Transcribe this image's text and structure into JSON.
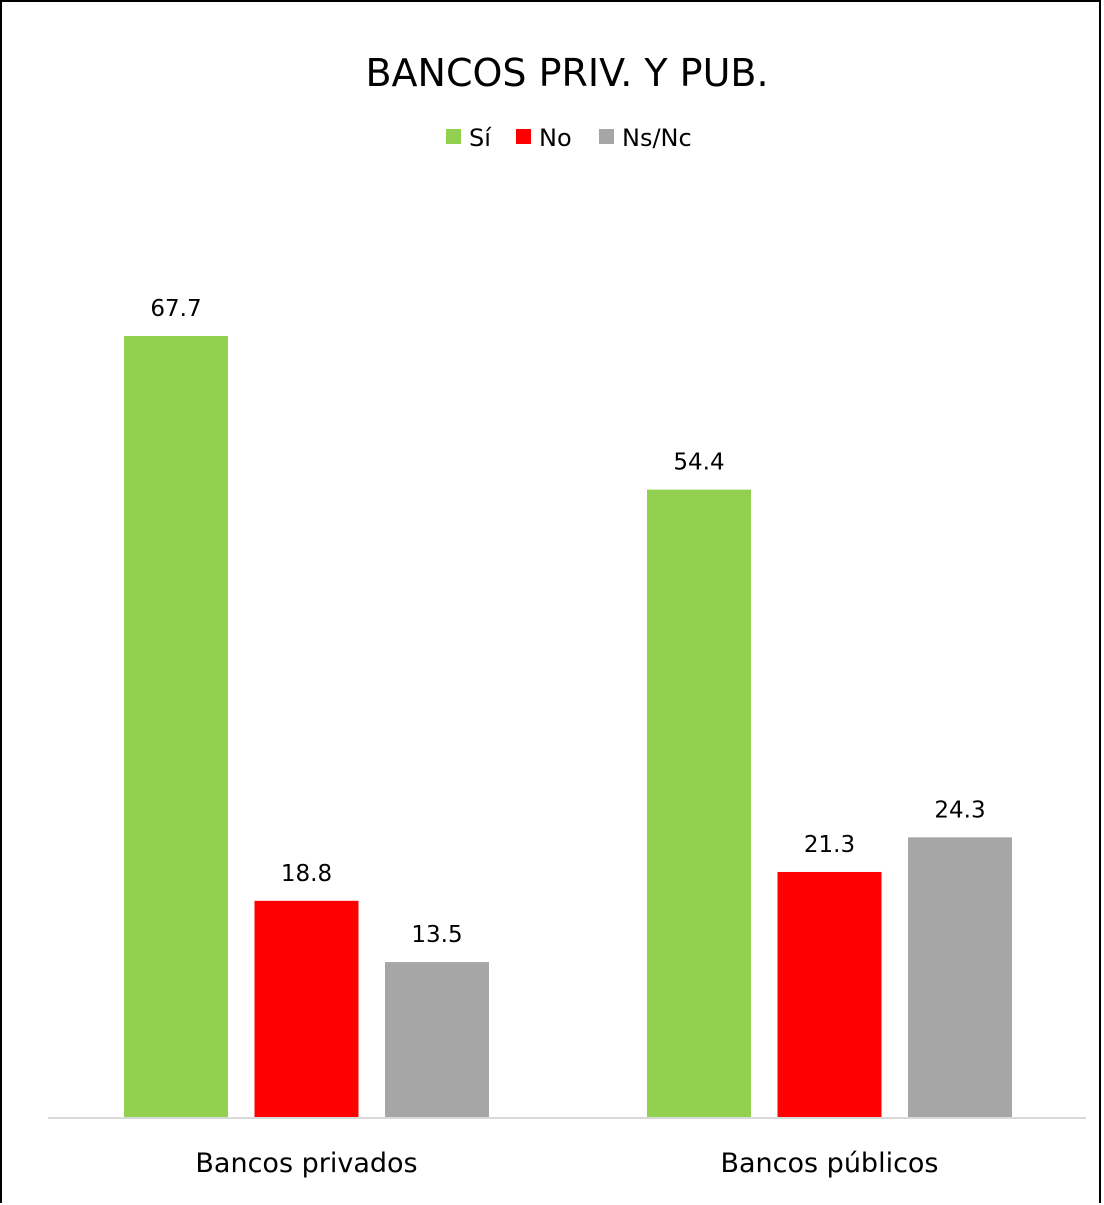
{
  "chart_data": {
    "type": "bar",
    "title": "BANCOS PRIV. Y PUB.",
    "categories": [
      "Bancos privados",
      "Bancos públicos"
    ],
    "series": [
      {
        "name": "Sí",
        "color": "#92d050",
        "values": [
          67.7,
          54.4
        ]
      },
      {
        "name": "No",
        "color": "#ff0000",
        "values": [
          18.8,
          21.3
        ]
      },
      {
        "name": "Ns/Nc",
        "color": "#a6a6a6",
        "values": [
          13.5,
          24.3
        ]
      }
    ],
    "ylim": [
      0,
      80
    ],
    "grid": false,
    "legend": "top-center",
    "data_labels": true
  }
}
